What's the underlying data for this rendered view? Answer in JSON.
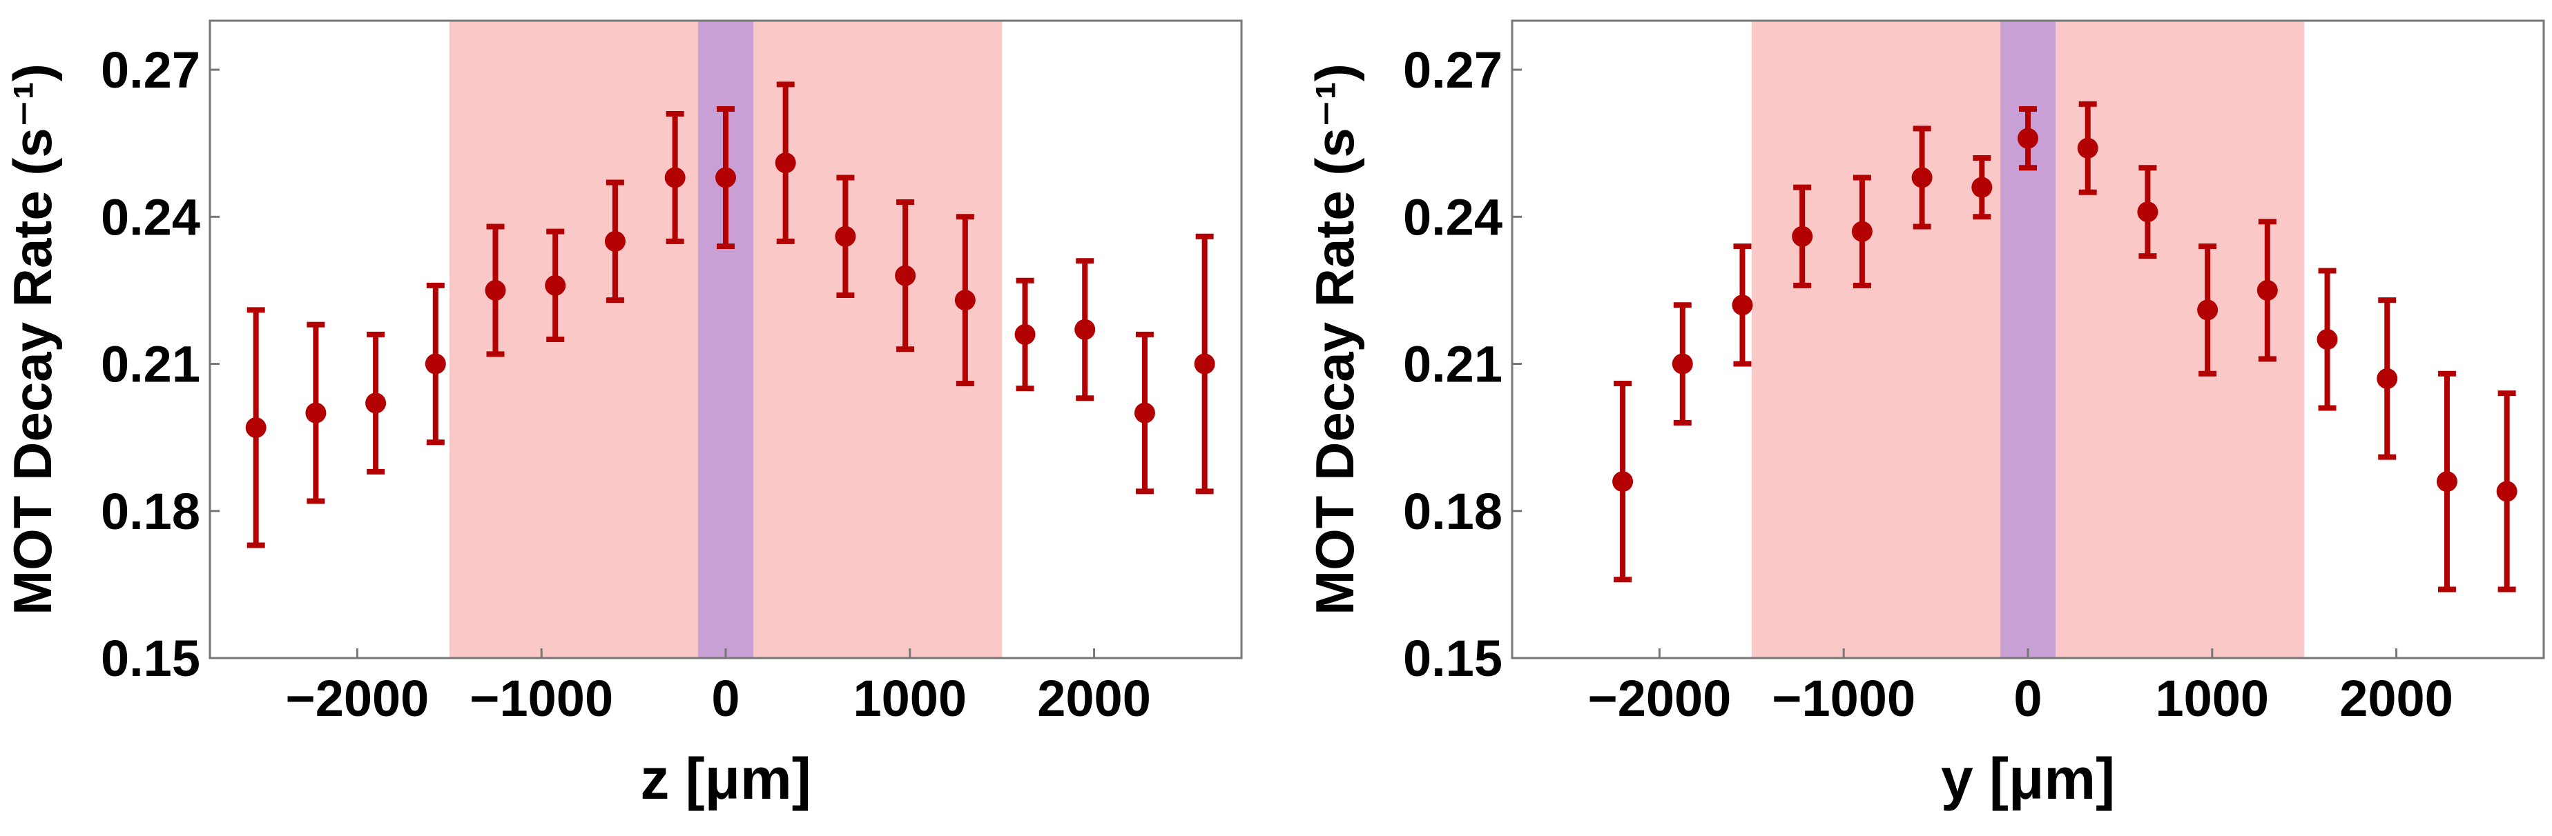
{
  "colors": {
    "point": "#b30000",
    "wide_band": "#fbc8c8",
    "narrow_band": "#c8a0d6",
    "frame": "#777777"
  },
  "chart_data": [
    {
      "type": "scatter",
      "xlabel": "z [μm]",
      "ylabel": "MOT Decay Rate (s⁻¹)",
      "xlim": [
        -2800,
        2800
      ],
      "ylim": [
        0.15,
        0.28
      ],
      "xticks": [
        -2000,
        -1000,
        0,
        1000,
        2000
      ],
      "xtick_labels": [
        "−2000",
        "−1000",
        "0",
        "1000",
        "2000"
      ],
      "yticks": [
        0.15,
        0.18,
        0.21,
        0.24,
        0.27
      ],
      "ytick_labels": [
        "0.15",
        "0.18",
        "0.21",
        "0.24",
        "0.27"
      ],
      "bands": [
        {
          "x0": -1500,
          "x1": 1500,
          "kind": "wide"
        },
        {
          "x0": -150,
          "x1": 150,
          "kind": "narrow"
        }
      ],
      "points": [
        {
          "x": -2550,
          "y": 0.197,
          "err": 0.024
        },
        {
          "x": -2225,
          "y": 0.2,
          "err": 0.018
        },
        {
          "x": -1900,
          "y": 0.202,
          "err": 0.014
        },
        {
          "x": -1575,
          "y": 0.21,
          "err": 0.016
        },
        {
          "x": -1250,
          "y": 0.225,
          "err": 0.013
        },
        {
          "x": -925,
          "y": 0.226,
          "err": 0.011
        },
        {
          "x": -600,
          "y": 0.235,
          "err": 0.012
        },
        {
          "x": -275,
          "y": 0.248,
          "err": 0.013
        },
        {
          "x": 0,
          "y": 0.248,
          "err": 0.014
        },
        {
          "x": 325,
          "y": 0.251,
          "err": 0.016
        },
        {
          "x": 650,
          "y": 0.236,
          "err": 0.012
        },
        {
          "x": 975,
          "y": 0.228,
          "err": 0.015
        },
        {
          "x": 1300,
          "y": 0.223,
          "err": 0.017
        },
        {
          "x": 1625,
          "y": 0.216,
          "err": 0.011
        },
        {
          "x": 1950,
          "y": 0.217,
          "err": 0.014
        },
        {
          "x": 2275,
          "y": 0.2,
          "err": 0.016
        },
        {
          "x": 2600,
          "y": 0.21,
          "err": 0.026
        }
      ]
    },
    {
      "type": "scatter",
      "xlabel": "y [μm]",
      "ylabel": "MOT Decay Rate (s⁻¹)",
      "xlim": [
        -2800,
        2800
      ],
      "ylim": [
        0.15,
        0.28
      ],
      "xticks": [
        -2000,
        -1000,
        0,
        1000,
        2000
      ],
      "xtick_labels": [
        "−2000",
        "−1000",
        "0",
        "1000",
        "2000"
      ],
      "yticks": [
        0.15,
        0.18,
        0.21,
        0.24,
        0.27
      ],
      "ytick_labels": [
        "0.15",
        "0.18",
        "0.21",
        "0.24",
        "0.27"
      ],
      "bands": [
        {
          "x0": -1500,
          "x1": 1500,
          "kind": "wide"
        },
        {
          "x0": -150,
          "x1": 150,
          "kind": "narrow"
        }
      ],
      "points": [
        {
          "x": -2200,
          "y": 0.186,
          "err": 0.02
        },
        {
          "x": -1875,
          "y": 0.21,
          "err": 0.012
        },
        {
          "x": -1550,
          "y": 0.222,
          "err": 0.012
        },
        {
          "x": -1225,
          "y": 0.236,
          "err": 0.01
        },
        {
          "x": -900,
          "y": 0.237,
          "err": 0.011
        },
        {
          "x": -575,
          "y": 0.248,
          "err": 0.01
        },
        {
          "x": -250,
          "y": 0.246,
          "err": 0.006
        },
        {
          "x": 0,
          "y": 0.256,
          "err": 0.006
        },
        {
          "x": 325,
          "y": 0.254,
          "err": 0.009
        },
        {
          "x": 650,
          "y": 0.241,
          "err": 0.009
        },
        {
          "x": 975,
          "y": 0.221,
          "err": 0.013
        },
        {
          "x": 1300,
          "y": 0.225,
          "err": 0.014
        },
        {
          "x": 1625,
          "y": 0.215,
          "err": 0.014
        },
        {
          "x": 1950,
          "y": 0.207,
          "err": 0.016
        },
        {
          "x": 2275,
          "y": 0.186,
          "err": 0.022
        },
        {
          "x": 2600,
          "y": 0.184,
          "err": 0.02
        }
      ]
    }
  ]
}
